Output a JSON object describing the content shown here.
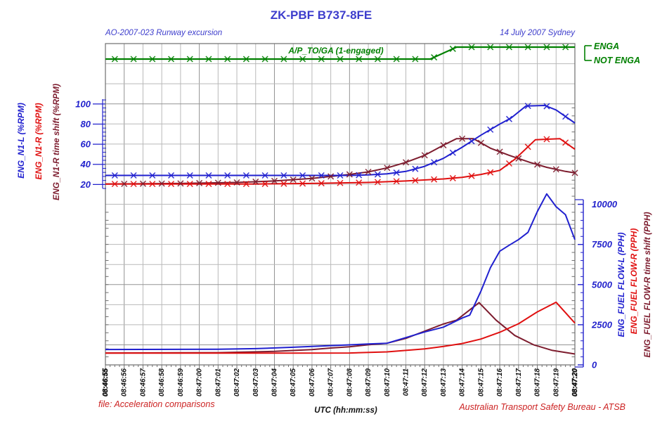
{
  "header": {
    "title": "ZK-PBF B737-8FE",
    "subtitle_left": "AO-2007-023 Runway excursion",
    "subtitle_right": "14 July 2007 Sydney"
  },
  "footer": {
    "file_note": "file: Acceleration comparisons",
    "x_axis_title": "UTC (hh:mm:ss)",
    "credit": "Australian Transport Safety Bureau - ATSB"
  },
  "ap_channel": {
    "label": "A/P_TO/GA (1-engaged)",
    "state_labels": [
      "ENGA",
      "NOT ENGA"
    ]
  },
  "axes": {
    "left_names": [
      {
        "text": "ENG_N1-L (%RPM)",
        "color": "#2020cf"
      },
      {
        "text": "ENG_N1-R (%RPM)",
        "color": "#e01010"
      },
      {
        "text": "ENG_N1-R time shift (%RPM)",
        "color": "#7d1c2e"
      }
    ],
    "right_names": [
      {
        "text": "ENG_FUEL FLOW-L (PPH)",
        "color": "#2020cf"
      },
      {
        "text": "ENG_FUEL FLOW-R (PPH)",
        "color": "#e01010"
      },
      {
        "text": "ENG_FUEL FLOW-R time shift (PPH)",
        "color": "#7d1c2e"
      }
    ]
  },
  "colors": {
    "n1_left": "#2020cf",
    "n1_right": "#e01010",
    "time_shift": "#7d1c2e",
    "autopilot": "#008000",
    "axis_tick_blue": "#2222cc",
    "grid_light": "#b9b9b9",
    "grid_dark": "#939393",
    "frame": "#6f6f6f",
    "footer_red": "#cc2222",
    "x_label_black": "#111111"
  },
  "chart_data": {
    "type": "line",
    "title": "ZK-PBF B737-8FE",
    "xlabel": "UTC (hh:mm:ss)",
    "x_tick_labels": [
      "08:46:55",
      "08:46:56",
      "08:46:57",
      "08:46:58",
      "08:46:59",
      "08:47:00",
      "08:47:01",
      "08:47:02",
      "08:47:03",
      "08:47:04",
      "08:47:05",
      "08:47:06",
      "08:47:07",
      "08:47:08",
      "08:47:09",
      "08:47:10",
      "08:47:11",
      "08:47:12",
      "08:47:13",
      "08:47:14",
      "08:47:15",
      "08:47:16",
      "08:47:17",
      "08:47:18",
      "08:47:19",
      "08:47:20"
    ],
    "left_axis": {
      "label": "N1 (%RPM)",
      "ticks": [
        100,
        80,
        60,
        40,
        20
      ],
      "range": [
        0,
        160
      ]
    },
    "right_axis": {
      "label": "FUEL FLOW (PPH)",
      "ticks": [
        10000,
        7500,
        5000,
        2500,
        0
      ],
      "range": [
        0,
        10000
      ]
    },
    "grid": true,
    "legend_position": "axis-labels-rotated",
    "series": [
      {
        "name": "ENG_FUEL FLOW-R time shift (PPH)",
        "axis": "ff",
        "color": "#7d1c2e",
        "markers": false,
        "points": [
          [
            0,
            740
          ],
          [
            6,
            760
          ],
          [
            9,
            840
          ],
          [
            11,
            950
          ],
          [
            12,
            1050
          ],
          [
            13,
            1130
          ],
          [
            14,
            1250
          ],
          [
            15,
            1350
          ],
          [
            16,
            1650
          ],
          [
            17,
            2100
          ],
          [
            18,
            2550
          ],
          [
            18.7,
            2790
          ],
          [
            19.9,
            3880
          ],
          [
            20.8,
            2790
          ],
          [
            21.8,
            1830
          ],
          [
            22.8,
            1250
          ],
          [
            23.8,
            900
          ],
          [
            25,
            680
          ]
        ]
      },
      {
        "name": "ENG_FUEL FLOW-R (PPH)",
        "axis": "ff",
        "color": "#e01010",
        "markers": false,
        "points": [
          [
            0,
            730
          ],
          [
            10,
            730
          ],
          [
            13,
            740
          ],
          [
            15,
            810
          ],
          [
            16,
            900
          ],
          [
            17,
            1000
          ],
          [
            18,
            1150
          ],
          [
            19,
            1330
          ],
          [
            20,
            1610
          ],
          [
            21,
            2030
          ],
          [
            22,
            2560
          ],
          [
            23,
            3300
          ],
          [
            24,
            3900
          ],
          [
            25,
            2600
          ]
        ]
      },
      {
        "name": "ENG_FUEL FLOW-L (PPH)",
        "axis": "ff",
        "color": "#2020cf",
        "markers": false,
        "points": [
          [
            0,
            960
          ],
          [
            6,
            970
          ],
          [
            8,
            1010
          ],
          [
            10,
            1100
          ],
          [
            12,
            1200
          ],
          [
            14,
            1300
          ],
          [
            15,
            1350
          ],
          [
            16,
            1700
          ],
          [
            17,
            2050
          ],
          [
            18,
            2350
          ],
          [
            19,
            2920
          ],
          [
            19.4,
            3100
          ],
          [
            20,
            4600
          ],
          [
            20.5,
            6050
          ],
          [
            21,
            7080
          ],
          [
            21.5,
            7450
          ],
          [
            22,
            7800
          ],
          [
            22.5,
            8250
          ],
          [
            23,
            9550
          ],
          [
            23.5,
            10650
          ],
          [
            24,
            9850
          ],
          [
            24.5,
            9350
          ],
          [
            25,
            7800
          ]
        ]
      },
      {
        "name": "ENG_N1-R time shift (%RPM)",
        "axis": "n1",
        "color": "#7d1c2e",
        "markers": true,
        "marker_offset": 1,
        "points": [
          [
            0,
            20.5
          ],
          [
            4,
            21
          ],
          [
            7,
            22
          ],
          [
            9,
            23.5
          ],
          [
            11,
            26
          ],
          [
            13,
            30
          ],
          [
            14,
            32.5
          ],
          [
            15,
            36.5
          ],
          [
            16,
            42
          ],
          [
            17,
            49
          ],
          [
            18,
            59
          ],
          [
            18.7,
            65.5
          ],
          [
            19.6,
            65.5
          ],
          [
            20.5,
            56
          ],
          [
            21.5,
            49
          ],
          [
            22.6,
            42
          ],
          [
            23.5,
            37
          ],
          [
            24.5,
            33
          ],
          [
            25,
            31.5
          ]
        ]
      },
      {
        "name": "ENG_N1-R (%RPM)",
        "axis": "n1",
        "color": "#e01010",
        "markers": true,
        "marker_offset": 0.5,
        "points": [
          [
            0,
            20.5
          ],
          [
            8,
            20.5
          ],
          [
            11,
            21
          ],
          [
            14,
            22
          ],
          [
            16,
            23.5
          ],
          [
            18,
            25.5
          ],
          [
            19,
            27
          ],
          [
            20,
            30
          ],
          [
            21,
            34
          ],
          [
            21.8,
            45
          ],
          [
            22.9,
            64.5
          ],
          [
            24.2,
            65.5
          ],
          [
            25,
            55
          ]
        ]
      },
      {
        "name": "ENG_N1-L (%RPM)",
        "axis": "n1",
        "color": "#2020cf",
        "markers": true,
        "marker_offset": 0.5,
        "points": [
          [
            0,
            29
          ],
          [
            13,
            29
          ],
          [
            14,
            29.5
          ],
          [
            15,
            30.5
          ],
          [
            16,
            33
          ],
          [
            17,
            38
          ],
          [
            18,
            46
          ],
          [
            19,
            57
          ],
          [
            20,
            69
          ],
          [
            21,
            80
          ],
          [
            21.6,
            86
          ],
          [
            22.4,
            98
          ],
          [
            23.4,
            98.5
          ],
          [
            24,
            94
          ],
          [
            25,
            81
          ]
        ]
      },
      {
        "name": "A/P_TO/GA (1-engaged)",
        "axis": "state",
        "color": "#008000",
        "markers": true,
        "marker_offset": 0.5,
        "state_values": {
          "engaged": 1,
          "not_engaged": 0
        },
        "points": [
          [
            0,
            0
          ],
          [
            17.3,
            0
          ],
          [
            18.7,
            1
          ],
          [
            25,
            1
          ]
        ]
      }
    ]
  }
}
